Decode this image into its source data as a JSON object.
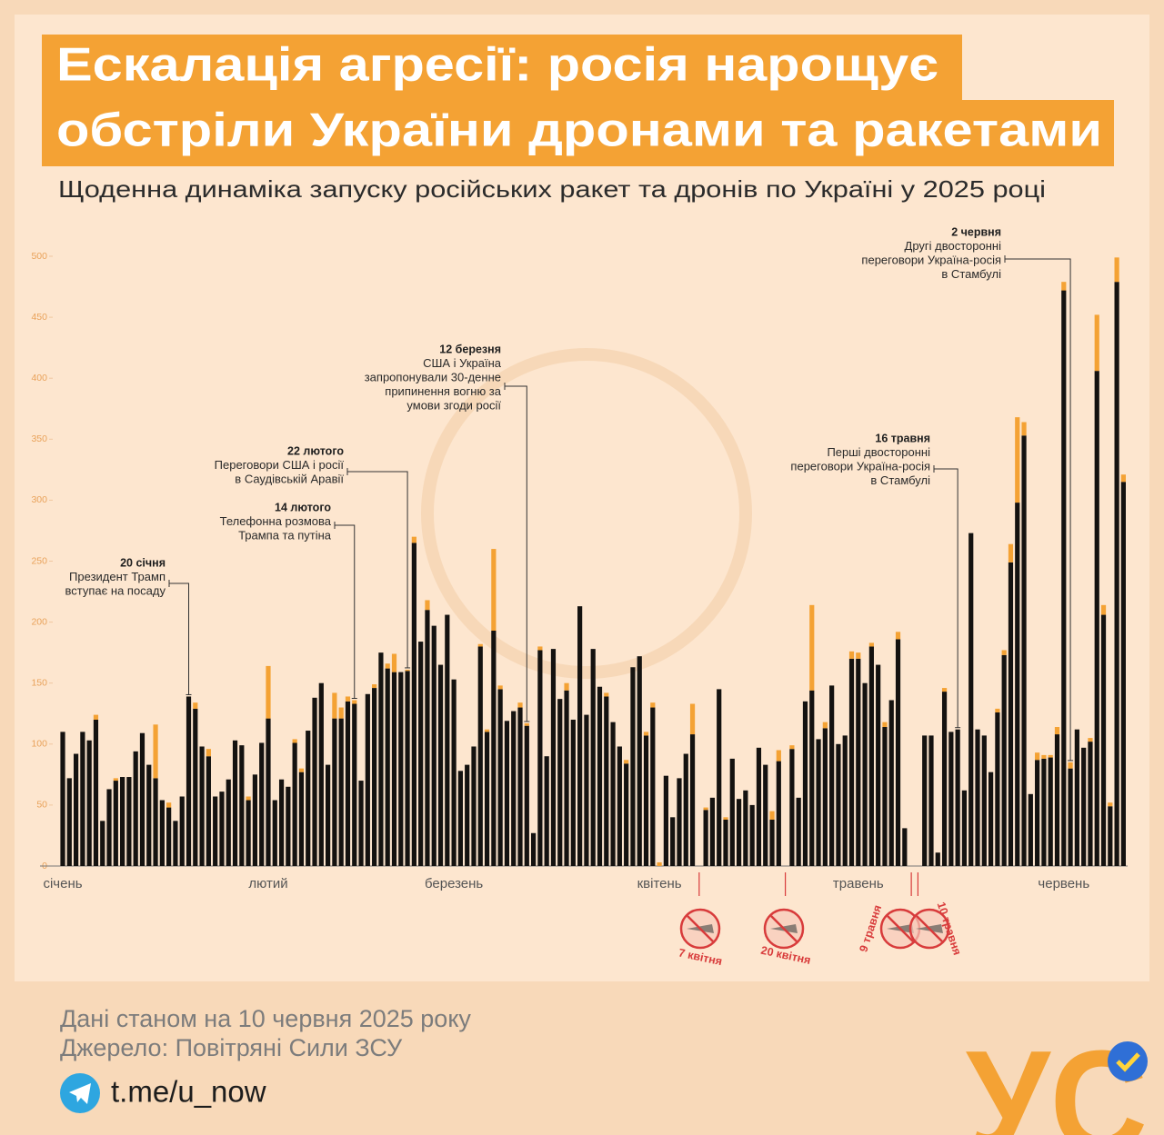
{
  "header": {
    "title_lines": [
      "Ескалація агресії: росія нарощує",
      "обстріли України дронами та ракетами"
    ],
    "subtitle": "Щоденна динаміка запуску російських ракет та дронів по Україні у 2025 році"
  },
  "chart_data": {
    "type": "stacked-bar",
    "categories": [
      "січень",
      null,
      null,
      null,
      null,
      null,
      null,
      null,
      null,
      null,
      null,
      null,
      null,
      null,
      null,
      null,
      null,
      null,
      null,
      null,
      null,
      null,
      null,
      null,
      null,
      null,
      null,
      null,
      null,
      null,
      null,
      "лютий",
      null,
      null,
      null,
      null,
      null,
      null,
      null,
      null,
      null,
      null,
      null,
      null,
      null,
      null,
      null,
      null,
      null,
      null,
      null,
      null,
      null,
      null,
      null,
      null,
      null,
      null,
      null,
      "березень",
      null,
      null,
      null,
      null,
      null,
      null,
      null,
      null,
      null,
      null,
      null,
      null,
      null,
      null,
      null,
      null,
      null,
      null,
      null,
      null,
      null,
      null,
      null,
      null,
      null,
      null,
      null,
      null,
      null,
      null,
      "квітень",
      null,
      null,
      null,
      null,
      null,
      null,
      null,
      null,
      null,
      null,
      null,
      null,
      null,
      null,
      null,
      null,
      null,
      null,
      null,
      null,
      null,
      null,
      null,
      null,
      null,
      null,
      null,
      null,
      null,
      "травень",
      null,
      null,
      null,
      null,
      null,
      null,
      null,
      null,
      null,
      null,
      null,
      null,
      null,
      null,
      null,
      null,
      null,
      null,
      null,
      null,
      null,
      null,
      null,
      null,
      null,
      null,
      null,
      null,
      null,
      null,
      "червень",
      null,
      null,
      null,
      null,
      null,
      null,
      null,
      null,
      null
    ],
    "series": [
      {
        "color": "#141210",
        "values": [
          110,
          72,
          92,
          110,
          103,
          120,
          37,
          63,
          70,
          73,
          73,
          94,
          109,
          83,
          72,
          54,
          48,
          37,
          57,
          139,
          129,
          98,
          90,
          57,
          61,
          71,
          103,
          99,
          54,
          75,
          101,
          121,
          54,
          71,
          65,
          101,
          77,
          111,
          138,
          150,
          83,
          121,
          121,
          135,
          133,
          70,
          141,
          146,
          175,
          162,
          159,
          159,
          160,
          265,
          184,
          210,
          197,
          165,
          206,
          153,
          78,
          83,
          98,
          180,
          110,
          193,
          145,
          119,
          127,
          130,
          115,
          27,
          177,
          90,
          178,
          137,
          144,
          120,
          213,
          124,
          178,
          147,
          139,
          118,
          98,
          84,
          163,
          172,
          107,
          130,
          0,
          74,
          40,
          72,
          92,
          108,
          0,
          46,
          56,
          145,
          38,
          88,
          55,
          62,
          50,
          97,
          83,
          38,
          86,
          0,
          96,
          56,
          135,
          144,
          104,
          113,
          148,
          100,
          107,
          170,
          170,
          150,
          180,
          165,
          114,
          136,
          186,
          31,
          0,
          0,
          107,
          107,
          11,
          143,
          110,
          112,
          62,
          273,
          112,
          107,
          77,
          126,
          173,
          249,
          298,
          353,
          59,
          87,
          88,
          89,
          108,
          472,
          80,
          112,
          97,
          102,
          406,
          206,
          49,
          479,
          315
        ]
      },
      {
        "color": "#f4a234",
        "values": [
          0,
          0,
          0,
          0,
          0,
          4,
          0,
          0,
          2,
          0,
          0,
          0,
          0,
          0,
          44,
          0,
          4,
          0,
          0,
          0,
          5,
          0,
          6,
          0,
          0,
          0,
          0,
          0,
          3,
          0,
          0,
          43,
          0,
          0,
          0,
          3,
          3,
          0,
          0,
          0,
          0,
          21,
          9,
          4,
          3,
          0,
          0,
          3,
          0,
          4,
          15,
          0,
          1,
          5,
          0,
          8,
          0,
          0,
          0,
          0,
          0,
          0,
          0,
          2,
          2,
          67,
          3,
          0,
          0,
          4,
          2,
          0,
          3,
          0,
          0,
          0,
          6,
          0,
          0,
          0,
          0,
          0,
          3,
          0,
          0,
          3,
          0,
          0,
          3,
          4,
          3,
          0,
          0,
          0,
          0,
          25,
          0,
          2,
          0,
          0,
          2,
          0,
          0,
          0,
          0,
          0,
          0,
          7,
          9,
          0,
          3,
          0,
          0,
          70,
          0,
          5,
          0,
          0,
          0,
          6,
          5,
          0,
          3,
          0,
          4,
          0,
          6,
          0,
          0,
          0,
          0,
          0,
          0,
          3,
          0,
          0,
          0,
          0,
          0,
          0,
          0,
          3,
          4,
          15,
          70,
          11,
          0,
          6,
          3,
          2,
          6,
          7,
          5,
          0,
          0,
          3,
          46,
          8,
          3,
          20,
          6
        ]
      }
    ],
    "ylim": [
      0,
      500
    ],
    "yticks": [
      0,
      50,
      100,
      150,
      200,
      250,
      300,
      350,
      400,
      450,
      500
    ],
    "annotations": [
      {
        "date": "20 січня",
        "lines": [
          "Президент Трамп",
          "вступає на посаду"
        ]
      },
      {
        "date": "14 лютого",
        "lines": [
          "Телефонна розмова",
          "Трампа та путіна"
        ]
      },
      {
        "date": "22 лютого",
        "lines": [
          "Переговори США і росії",
          "в Саудівській Аравії"
        ]
      },
      {
        "date": "12 березня",
        "lines": [
          "США і Україна",
          "запропонували 30-денне",
          "припинення вогню за",
          "умови згоди росії"
        ]
      },
      {
        "date": "16 травня",
        "lines": [
          "Перші двосторонні",
          "переговори Україна-росія",
          "в Стамбулі"
        ]
      },
      {
        "date": "2 червня",
        "lines": [
          "Другі двосторонні",
          "переговори Україна-росія",
          "в Стамбулі"
        ]
      }
    ],
    "no_attack_labels": [
      "7 квітня",
      "20 квітня",
      "9 травня",
      "10 травня"
    ]
  },
  "footer": {
    "date_note": "Дані станом на 10 червня 2025 року",
    "source": "Джерело: Повітряні Сили ЗСУ",
    "link": "t.me/u_now",
    "logo": "УС"
  }
}
